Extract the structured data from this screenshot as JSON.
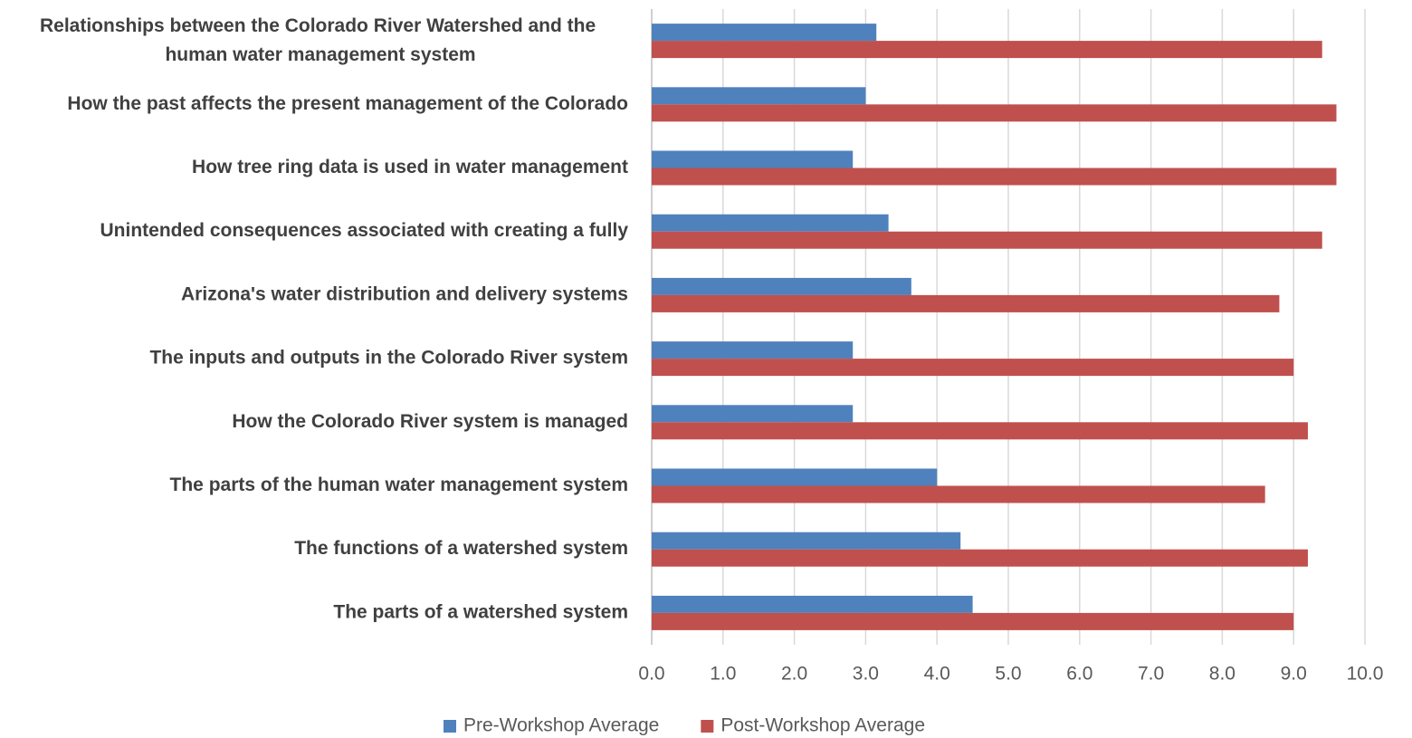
{
  "chart_data": {
    "type": "bar",
    "orientation": "horizontal",
    "categories": [
      "Relationships between the Colorado River Watershed and the human water management system",
      "How the past affects the present management of the Colorado",
      "How tree ring data is used in water management",
      "Unintended consequences associated with creating a fully",
      "Arizona's water distribution and delivery systems",
      "The inputs and outputs in the Colorado River system",
      "How the Colorado River system is managed",
      "The parts of the human water management system",
      "The functions of a watershed system",
      "The parts of a watershed system"
    ],
    "series": [
      {
        "name": "Pre-Workshop Average",
        "color": "#4f81bd",
        "values": [
          3.15,
          3.0,
          2.82,
          3.32,
          3.64,
          2.82,
          2.82,
          4.0,
          4.33,
          4.5
        ]
      },
      {
        "name": "Post-Workshop Average",
        "color": "#c0504d",
        "values": [
          9.4,
          9.6,
          9.6,
          9.4,
          8.8,
          9.0,
          9.2,
          8.6,
          9.2,
          9.0
        ]
      }
    ],
    "xlim": [
      0,
      10
    ],
    "xticks": [
      {
        "value": 0,
        "label": "0.0"
      },
      {
        "value": 1,
        "label": "1.0"
      },
      {
        "value": 2,
        "label": "2.0"
      },
      {
        "value": 3,
        "label": "3.0"
      },
      {
        "value": 4,
        "label": "4.0"
      },
      {
        "value": 5,
        "label": "5.0"
      },
      {
        "value": 6,
        "label": "6.0"
      },
      {
        "value": 7,
        "label": "7.0"
      },
      {
        "value": 8,
        "label": "8.0"
      },
      {
        "value": 9,
        "label": "9.0"
      },
      {
        "value": 10,
        "label": "10.0"
      }
    ],
    "grid": true,
    "legend": "bottom"
  }
}
